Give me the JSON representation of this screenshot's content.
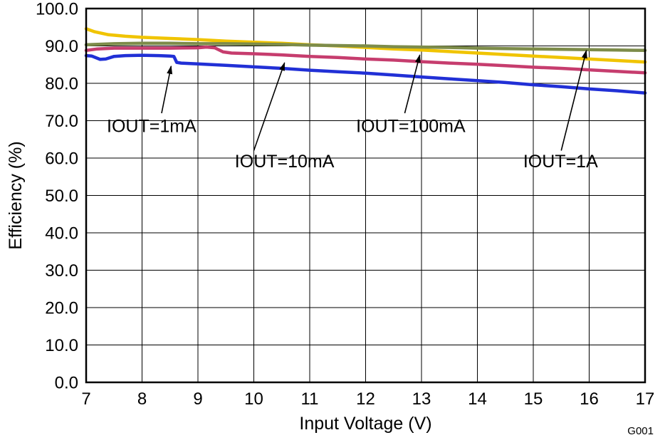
{
  "chart_data": {
    "type": "line",
    "title": "",
    "xlabel": "Input Voltage (V)",
    "ylabel": "Efficiency (%)",
    "watermark": "G001",
    "xlim": [
      7,
      17
    ],
    "ylim": [
      0,
      100
    ],
    "grid": true,
    "x_ticks": [
      7,
      8,
      9,
      10,
      11,
      12,
      13,
      14,
      15,
      16,
      17
    ],
    "x_tick_labels": [
      "7",
      "8",
      "9",
      "10",
      "11",
      "12",
      "13",
      "14",
      "15",
      "16",
      "17"
    ],
    "y_ticks": [
      0,
      10,
      20,
      30,
      40,
      50,
      60,
      70,
      80,
      90,
      100
    ],
    "y_tick_labels": [
      "0.0",
      "10.0",
      "20.0",
      "30.0",
      "40.0",
      "50.0",
      "60.0",
      "70.0",
      "80.0",
      "90.0",
      "100.0"
    ],
    "series": [
      {
        "name": "IOUT=1mA",
        "color": "#2130d6",
        "x": [
          7.0,
          7.1,
          7.25,
          7.35,
          7.5,
          7.7,
          8.0,
          8.3,
          8.5,
          8.57,
          8.62,
          8.7,
          9.0,
          9.5,
          10.0,
          10.5,
          11.0,
          11.5,
          12.0,
          12.5,
          13.0,
          13.5,
          14.0,
          14.5,
          15.0,
          15.5,
          16.0,
          16.5,
          17.0
        ],
        "y": [
          87.4,
          87.3,
          86.4,
          86.5,
          87.2,
          87.4,
          87.5,
          87.4,
          87.3,
          87.2,
          85.6,
          85.4,
          85.2,
          84.8,
          84.4,
          84.0,
          83.5,
          83.1,
          82.7,
          82.2,
          81.7,
          81.2,
          80.7,
          80.2,
          79.6,
          79.1,
          78.5,
          78.0,
          77.4
        ]
      },
      {
        "name": "IOUT=10mA",
        "color": "#c63d6e",
        "x": [
          7.0,
          7.2,
          7.5,
          8.0,
          8.5,
          9.0,
          9.15,
          9.3,
          9.45,
          9.6,
          9.8,
          10.0,
          10.5,
          11.0,
          11.5,
          12.0,
          12.5,
          13.0,
          13.5,
          14.0,
          14.5,
          15.0,
          15.5,
          16.0,
          16.5,
          17.0
        ],
        "y": [
          88.8,
          89.2,
          89.4,
          89.4,
          89.4,
          89.5,
          89.7,
          89.5,
          88.4,
          88.1,
          88.0,
          87.9,
          87.6,
          87.2,
          86.9,
          86.5,
          86.2,
          85.8,
          85.4,
          85.1,
          84.7,
          84.3,
          84.0,
          83.6,
          83.2,
          82.8
        ]
      },
      {
        "name": "IOUT=100mA",
        "color": "#f0c400",
        "x": [
          7.0,
          7.15,
          7.4,
          7.7,
          8.0,
          8.5,
          9.0,
          9.5,
          10.0,
          10.5,
          11.0,
          11.5,
          12.0,
          12.5,
          13.0,
          13.5,
          14.0,
          14.5,
          15.0,
          15.5,
          16.0,
          16.5,
          17.0
        ],
        "y": [
          94.6,
          93.8,
          93.0,
          92.6,
          92.3,
          92.0,
          91.7,
          91.3,
          91.0,
          90.7,
          90.3,
          90.0,
          89.6,
          89.2,
          88.9,
          88.5,
          88.1,
          87.7,
          87.3,
          86.9,
          86.5,
          86.1,
          85.7
        ]
      },
      {
        "name": "IOUT=1A",
        "color": "#7d8c4a",
        "x": [
          7.0,
          7.5,
          8.0,
          8.5,
          9.0,
          9.5,
          10.0,
          10.5,
          11.0,
          11.5,
          12.0,
          12.5,
          13.0,
          13.5,
          14.0,
          14.5,
          15.0,
          15.5,
          16.0,
          16.5,
          17.0
        ],
        "y": [
          90.3,
          90.6,
          90.7,
          90.7,
          90.6,
          90.6,
          90.5,
          90.4,
          90.2,
          90.1,
          90.0,
          89.8,
          89.7,
          89.6,
          89.4,
          89.3,
          89.2,
          89.1,
          89.0,
          88.9,
          88.8
        ]
      }
    ],
    "annotations": [
      {
        "label": "IOUT=1mA",
        "text_x": 7.37,
        "text_y": 67.0,
        "ax": 8.35,
        "ay": 72.0,
        "bx": 8.52,
        "by": 84.6
      },
      {
        "label": "IOUT=10mA",
        "text_x": 9.66,
        "text_y": 57.5,
        "ax": 10.0,
        "ay": 62.0,
        "bx": 10.55,
        "by": 85.5
      },
      {
        "label": "IOUT=100mA",
        "text_x": 11.83,
        "text_y": 67.0,
        "ax": 12.7,
        "ay": 72.0,
        "bx": 12.97,
        "by": 87.6
      },
      {
        "label": "IOUT=1A",
        "text_x": 14.82,
        "text_y": 57.5,
        "ax": 15.5,
        "ay": 62.0,
        "bx": 15.95,
        "by": 88.8
      }
    ]
  }
}
